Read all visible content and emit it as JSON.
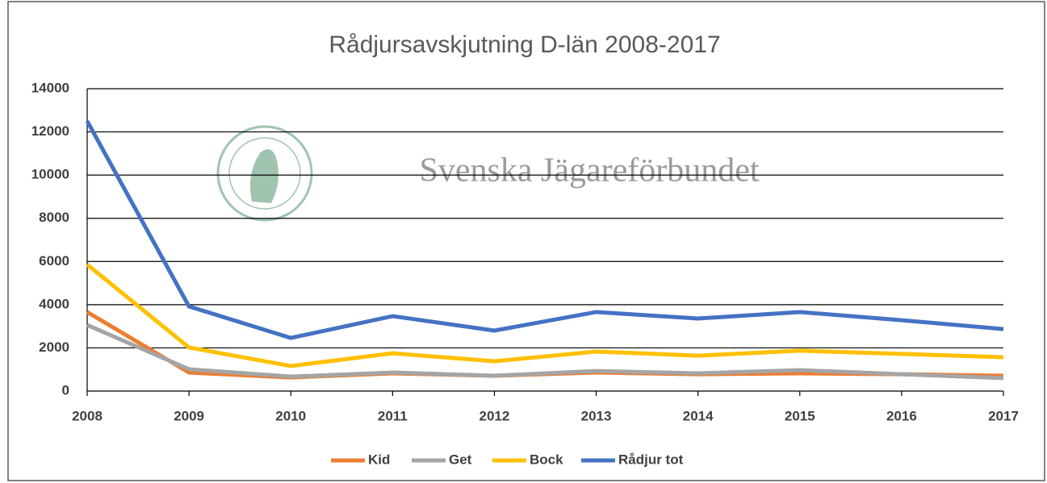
{
  "chart_data": {
    "type": "line",
    "title": "Rådjursavskjutning D-län 2008-2017",
    "annotation": "Svenska Jägareförbundet",
    "x": [
      2008,
      2009,
      2010,
      2011,
      2012,
      2013,
      2014,
      2015,
      2016,
      2017
    ],
    "xlim": [
      2008,
      2017
    ],
    "xticks": [
      2008,
      2009,
      2010,
      2011,
      2012,
      2013,
      2014,
      2015,
      2016,
      2017
    ],
    "ylim": [
      0,
      14000
    ],
    "yticks": [
      0,
      2000,
      4000,
      6000,
      8000,
      10000,
      12000,
      14000
    ],
    "grid": true,
    "legend": "bottom",
    "series": [
      {
        "name": "Kid",
        "color": "#ed7d31",
        "values": [
          3660,
          860,
          630,
          820,
          710,
          860,
          780,
          820,
          780,
          710
        ]
      },
      {
        "name": "Get",
        "color": "#a5a5a5",
        "values": [
          3060,
          1010,
          670,
          860,
          710,
          930,
          820,
          970,
          780,
          600
        ]
      },
      {
        "name": "Bock",
        "color": "#ffc000",
        "values": [
          5860,
          2020,
          1160,
          1750,
          1380,
          1830,
          1640,
          1870,
          1720,
          1570
        ]
      },
      {
        "name": "Rådjur tot",
        "color": "#4472c4",
        "values": [
          12500,
          3920,
          2460,
          3470,
          2800,
          3660,
          3360,
          3660,
          3280,
          2870
        ]
      }
    ]
  }
}
